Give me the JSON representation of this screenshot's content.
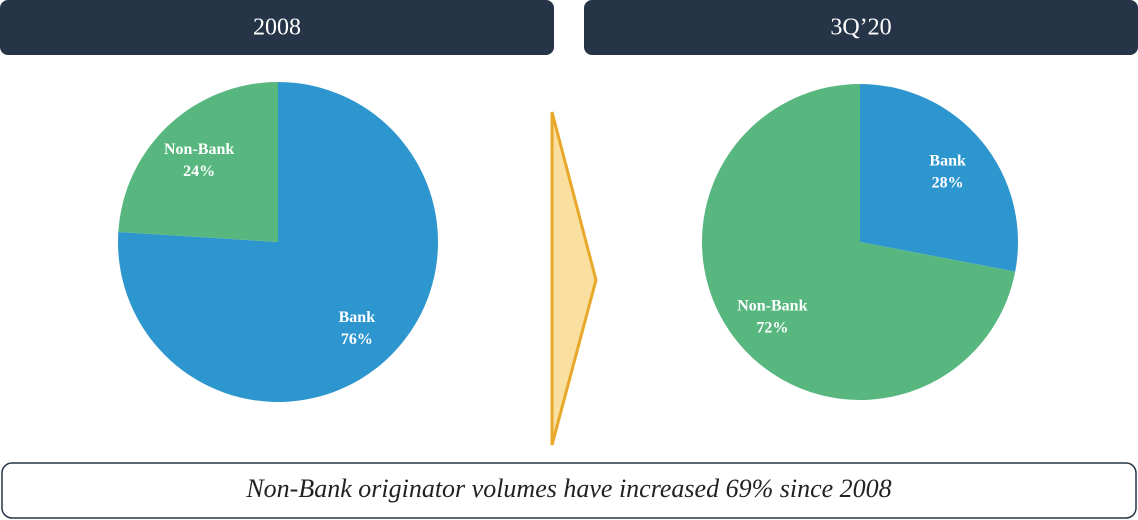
{
  "chart_data": [
    {
      "type": "pie",
      "title": "2008",
      "categories": [
        "Bank",
        "Non-Bank"
      ],
      "values": [
        76,
        24
      ],
      "value_labels": [
        "76%",
        "24%"
      ],
      "colors": [
        "#2e96cf",
        "#57b77f"
      ]
    },
    {
      "type": "pie",
      "title": "3Q’20",
      "categories": [
        "Bank",
        "Non-Bank"
      ],
      "values": [
        28,
        72
      ],
      "value_labels": [
        "28%",
        "72%"
      ],
      "colors": [
        "#2e96cf",
        "#57b77f"
      ]
    }
  ],
  "note": "Non-Bank originator volumes have increased 69% since 2008"
}
